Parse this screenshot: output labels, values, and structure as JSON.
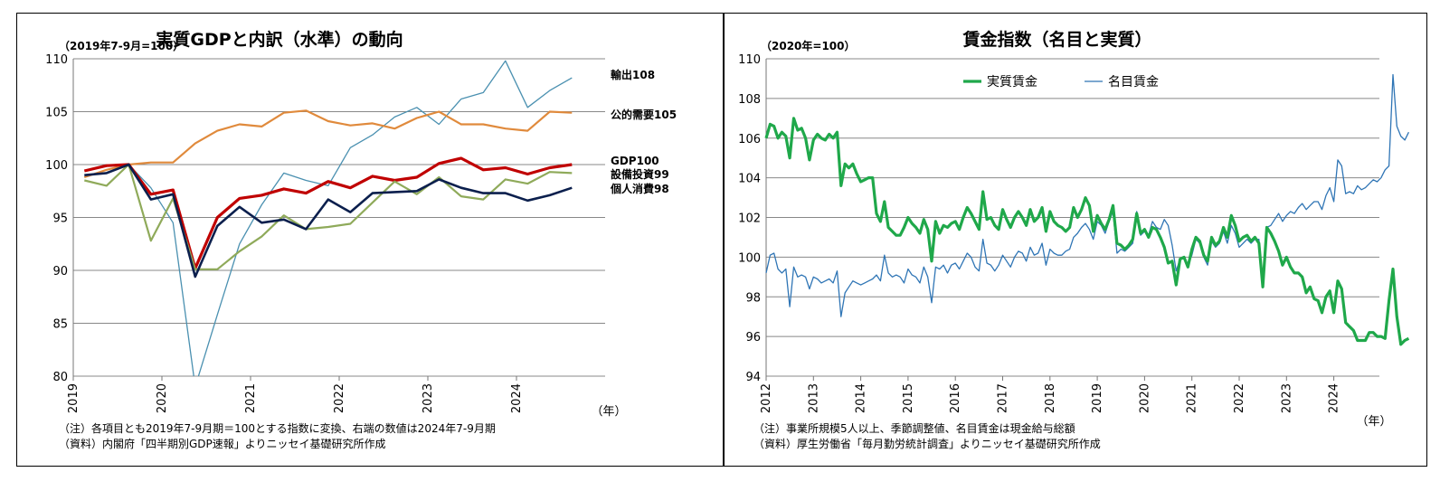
{
  "chart_data": [
    {
      "type": "line",
      "title": "実質GDPと内訳（水準）の動向",
      "unit_label": "（2019年7-9月=100）",
      "xlabel": "（年）",
      "year_ticks": [
        "2019",
        "2020",
        "2021",
        "2022",
        "2023",
        "2024"
      ],
      "ylim": [
        80,
        110
      ],
      "yticks": [
        80,
        85,
        90,
        95,
        100,
        105,
        110
      ],
      "grid": true,
      "x_quarters": [
        "2019Q1",
        "2019Q2",
        "2019Q3",
        "2019Q4",
        "2020Q1",
        "2020Q2",
        "2020Q3",
        "2020Q4",
        "2021Q1",
        "2021Q2",
        "2021Q3",
        "2021Q4",
        "2022Q1",
        "2022Q2",
        "2022Q3",
        "2022Q4",
        "2023Q1",
        "2023Q2",
        "2023Q3",
        "2023Q4",
        "2024Q1",
        "2024Q2",
        "2024Q3"
      ],
      "series": [
        {
          "label": "輸出108",
          "color": "#4a90b0",
          "width": 1.3,
          "values": [
            98.8,
            99.5,
            100.0,
            97.8,
            94.5,
            79.0,
            85.8,
            92.5,
            96.2,
            99.2,
            98.5,
            98.0,
            101.6,
            102.8,
            104.5,
            105.4,
            103.8,
            106.2,
            106.8,
            109.8,
            105.4,
            107.0,
            108.2
          ]
        },
        {
          "label": "公的需要105",
          "color": "#e08a3c",
          "width": 2.2,
          "values": [
            98.8,
            99.5,
            100.0,
            100.2,
            100.2,
            102.0,
            103.2,
            103.8,
            103.6,
            104.9,
            105.1,
            104.1,
            103.7,
            103.9,
            103.4,
            104.4,
            105.0,
            103.8,
            103.8,
            103.4,
            103.2,
            105.0,
            104.9
          ]
        },
        {
          "label": "GDP100",
          "color": "#c00000",
          "width": 3.2,
          "values": [
            99.4,
            99.9,
            100.0,
            97.2,
            97.6,
            90.2,
            95.0,
            96.8,
            97.1,
            97.7,
            97.3,
            98.4,
            97.8,
            98.9,
            98.5,
            98.8,
            100.1,
            100.6,
            99.5,
            99.7,
            99.1,
            99.7,
            100.0
          ]
        },
        {
          "label": "設備投資99",
          "color": "#8faa5a",
          "width": 2.2,
          "values": [
            98.5,
            98.0,
            100.0,
            92.8,
            96.8,
            90.1,
            90.1,
            91.8,
            93.2,
            95.2,
            93.9,
            94.1,
            94.4,
            96.4,
            98.4,
            97.2,
            98.8,
            97.0,
            96.7,
            98.6,
            98.2,
            99.3,
            99.2
          ]
        },
        {
          "label": "個人消費98",
          "color": "#0b1f4d",
          "width": 2.6,
          "values": [
            99.0,
            99.2,
            100.0,
            96.7,
            97.2,
            89.4,
            94.2,
            96.0,
            94.5,
            94.8,
            93.9,
            96.7,
            95.5,
            97.3,
            97.4,
            97.5,
            98.6,
            97.8,
            97.3,
            97.3,
            96.6,
            97.1,
            97.8
          ]
        }
      ],
      "notes": [
        "（注）各項目とも2019年7-9月期＝100とする指数に変換、右端の数値は2024年7-9月期",
        "（資料）内閣府「四半期別GDP速報」よりニッセイ基礎研究所作成"
      ]
    },
    {
      "type": "line",
      "title": "賃金指数（名目と実質）",
      "unit_label": "（2020年=100）",
      "xlabel": "（年）",
      "year_ticks": [
        "2012",
        "2013",
        "2014",
        "2015",
        "2016",
        "2017",
        "2018",
        "2019",
        "2020",
        "2021",
        "2022",
        "2023",
        "2024"
      ],
      "ylim": [
        94,
        110
      ],
      "yticks": [
        94,
        96,
        98,
        100,
        102,
        104,
        106,
        108,
        110
      ],
      "grid": true,
      "x_start": "2012-01",
      "legend": [
        "実質賃金",
        "名目賃金"
      ],
      "legend_position": "top-left",
      "series": [
        {
          "name": "実質賃金",
          "color": "#1fa84a",
          "width": 3.2,
          "values": [
            106.0,
            106.7,
            106.6,
            106.0,
            106.3,
            106.1,
            105.0,
            107.0,
            106.4,
            106.5,
            106.0,
            104.9,
            105.9,
            106.2,
            106.0,
            105.9,
            106.2,
            106.0,
            106.3,
            103.6,
            104.7,
            104.5,
            104.7,
            104.2,
            103.8,
            103.9,
            104.0,
            104.0,
            102.2,
            101.8,
            102.8,
            101.5,
            101.3,
            101.1,
            101.1,
            101.5,
            102.0,
            101.7,
            101.5,
            101.2,
            101.9,
            101.4,
            99.8,
            101.8,
            101.2,
            101.6,
            101.5,
            101.7,
            101.8,
            101.4,
            102.0,
            102.5,
            102.2,
            101.8,
            101.4,
            103.3,
            101.9,
            102.0,
            101.6,
            101.4,
            102.4,
            101.9,
            101.5,
            102.0,
            102.3,
            102.0,
            101.6,
            102.4,
            101.8,
            102.0,
            102.5,
            101.3,
            102.3,
            101.8,
            101.6,
            101.5,
            101.3,
            101.5,
            102.5,
            102.0,
            102.4,
            103.0,
            102.6,
            101.3,
            102.1,
            101.7,
            101.4,
            101.9,
            102.6,
            100.7,
            100.6,
            100.4,
            100.6,
            100.9,
            102.2,
            101.2,
            101.4,
            101.0,
            101.5,
            101.4,
            101.0,
            100.5,
            99.7,
            99.8,
            98.6,
            99.9,
            100.0,
            99.5,
            100.4,
            101.0,
            100.8,
            100.1,
            99.8,
            101.0,
            100.6,
            100.8,
            101.5,
            101.0,
            102.1,
            101.6,
            100.8,
            101.0,
            101.1,
            100.8,
            101.0,
            100.7,
            98.5,
            101.5,
            101.2,
            100.8,
            100.3,
            99.6,
            100.0,
            99.5,
            99.2,
            99.2,
            99.0,
            98.2,
            98.5,
            97.9,
            97.8,
            97.2,
            98.0,
            98.3,
            97.2,
            98.8,
            98.4,
            96.7,
            96.5,
            96.3,
            95.8,
            95.8,
            95.8,
            96.2,
            96.2,
            96.0,
            96.0,
            95.9,
            97.8,
            99.4,
            97.0,
            95.6,
            95.8,
            95.9
          ]
        },
        {
          "name": "名目賃金",
          "color": "#2f75b5",
          "width": 1.3,
          "values": [
            99.2,
            100.1,
            100.2,
            99.4,
            99.2,
            99.4,
            97.5,
            99.5,
            99.0,
            99.1,
            99.0,
            98.4,
            99.0,
            98.9,
            98.7,
            98.8,
            98.9,
            98.7,
            99.3,
            97.0,
            98.2,
            98.5,
            98.8,
            98.7,
            98.6,
            98.7,
            98.8,
            98.9,
            99.1,
            98.8,
            100.1,
            99.2,
            99.0,
            99.1,
            99.0,
            98.7,
            99.4,
            99.1,
            99.0,
            98.7,
            99.5,
            99.0,
            97.7,
            99.5,
            99.4,
            99.6,
            99.2,
            99.6,
            99.7,
            99.4,
            99.8,
            100.2,
            100.0,
            99.5,
            99.3,
            100.9,
            99.7,
            99.6,
            99.3,
            99.6,
            100.1,
            99.8,
            99.5,
            100.0,
            100.3,
            100.2,
            99.8,
            100.5,
            100.1,
            100.2,
            100.7,
            99.6,
            100.4,
            100.2,
            100.1,
            100.1,
            100.3,
            100.4,
            101.0,
            101.2,
            101.5,
            101.7,
            101.4,
            100.9,
            101.8,
            101.6,
            101.2,
            101.8,
            102.3,
            100.2,
            100.4,
            100.3,
            100.5,
            100.7,
            102.3,
            101.1,
            101.3,
            101.1,
            101.8,
            101.5,
            101.4,
            101.9,
            101.6,
            100.6,
            99.3,
            99.9,
            100.0,
            99.6,
            100.1,
            100.9,
            100.7,
            100.0,
            99.6,
            100.8,
            100.5,
            100.7,
            101.3,
            100.7,
            101.6,
            101.2,
            100.5,
            100.7,
            100.9,
            100.7,
            100.9,
            100.9,
            98.5,
            101.5,
            101.6,
            101.9,
            102.2,
            101.8,
            102.1,
            102.3,
            102.2,
            102.5,
            102.7,
            102.4,
            102.6,
            102.8,
            102.8,
            102.4,
            103.1,
            103.5,
            102.8,
            104.9,
            104.6,
            103.2,
            103.3,
            103.2,
            103.6,
            103.4,
            103.5,
            103.7,
            103.9,
            103.8,
            104.0,
            104.4,
            104.6,
            109.2,
            106.6,
            106.1,
            105.9,
            106.3
          ]
        }
      ],
      "notes": [
        "（注）事業所規模5人以上、季節調整値、名目賃金は現金給与総額",
        "（資料）厚生労働省「毎月勤労統計調査」よりニッセイ基礎研究所作成"
      ]
    }
  ]
}
